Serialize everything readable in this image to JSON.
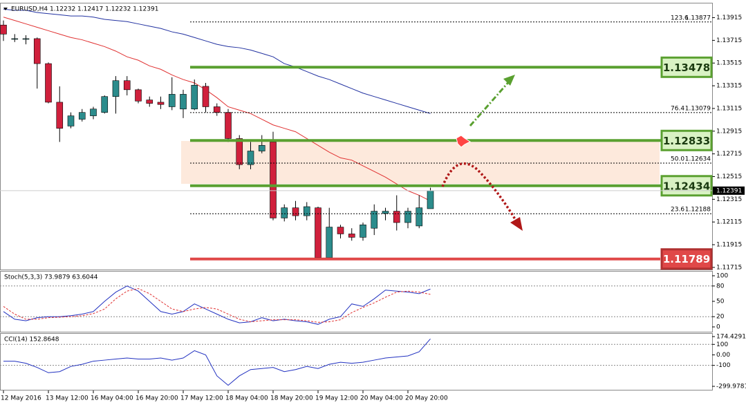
{
  "chart_data": [
    {
      "type": "candlestick",
      "title": "EURUSD,H4  1.12232 1.12417 1.12232 1.12391",
      "last_price": 1.12391,
      "categories": [
        "12 May 2016",
        null,
        null,
        null,
        "13 May 12:00",
        null,
        null,
        null,
        "16 May 04:00",
        null,
        null,
        null,
        "16 May 20:00",
        null,
        null,
        null,
        "17 May 12:00",
        null,
        null,
        null,
        "18 May 04:00",
        null,
        null,
        null,
        "18 May 20:00",
        null,
        null,
        null,
        "19 May 12:00",
        null,
        null,
        null,
        "20 May 04:00",
        null,
        null,
        null,
        "20 May 20:00",
        null,
        null
      ],
      "open": [
        1.1385,
        1.1373,
        1.1373,
        1.1373,
        1.1351,
        1.1317,
        1.1296,
        1.1302,
        1.1305,
        1.1308,
        1.1322,
        1.1336,
        1.1328,
        1.1319,
        1.1317,
        1.1313,
        1.1311,
        1.1311,
        1.1331,
        1.1313,
        1.1308,
        1.1285,
        1.1262,
        1.1274,
        1.1282,
        1.1215,
        1.1224,
        1.1217,
        1.1224,
        1.118,
        1.1207,
        1.1201,
        1.1198,
        1.1206,
        1.1219,
        1.1221,
        1.1211,
        1.1208,
        1.12232
      ],
      "high": [
        1.1389,
        1.1377,
        1.1376,
        1.1374,
        1.1352,
        1.1331,
        1.1308,
        1.1311,
        1.1313,
        1.1323,
        1.134,
        1.134,
        1.1329,
        1.1322,
        1.1322,
        1.1339,
        1.1328,
        1.1337,
        1.1334,
        1.1316,
        1.1311,
        1.1288,
        1.1282,
        1.1288,
        1.1291,
        1.1227,
        1.123,
        1.1229,
        1.1225,
        1.1224,
        1.1209,
        1.1206,
        1.1211,
        1.1227,
        1.1224,
        1.1235,
        1.1224,
        1.1235,
        1.12417
      ],
      "low": [
        1.1371,
        1.137,
        1.1368,
        1.1329,
        1.1316,
        1.1282,
        1.1294,
        1.13,
        1.1302,
        1.1307,
        1.1307,
        1.1323,
        1.1316,
        1.1313,
        1.1311,
        1.131,
        1.1303,
        1.131,
        1.1308,
        1.1305,
        1.1282,
        1.1258,
        1.1258,
        1.1272,
        1.1213,
        1.1212,
        1.1213,
        1.1213,
        1.1179,
        1.1179,
        1.1197,
        1.1195,
        1.1195,
        1.12,
        1.1213,
        1.1204,
        1.1206,
        1.1206,
        1.12232
      ],
      "close": [
        1.1377,
        1.1373,
        1.1373,
        1.1351,
        1.1317,
        1.1294,
        1.1305,
        1.1308,
        1.1311,
        1.1322,
        1.1336,
        1.1328,
        1.1318,
        1.1316,
        1.1315,
        1.1324,
        1.1324,
        1.1332,
        1.1313,
        1.1308,
        1.1285,
        1.1262,
        1.1274,
        1.1279,
        1.1215,
        1.1224,
        1.1217,
        1.1225,
        1.118,
        1.1207,
        1.1201,
        1.1198,
        1.1209,
        1.1221,
        1.1221,
        1.1211,
        1.1221,
        1.1224,
        1.12391
      ],
      "up_color": "#2c8c8c",
      "down_color": "#d0203c",
      "series": [
        {
          "color": "#e03030",
          "values": [
            1.1392,
            1.1389,
            1.1386,
            1.1383,
            1.138,
            1.1377,
            1.1374,
            1.1372,
            1.1369,
            1.1366,
            1.1362,
            1.1357,
            1.1354,
            1.1349,
            1.1346,
            1.1341,
            1.1337,
            1.1334,
            1.1328,
            1.1321,
            1.1313,
            1.131,
            1.1307,
            1.1302,
            1.1297,
            1.1294,
            1.1291,
            1.1285,
            1.1279,
            1.1273,
            1.1268,
            1.1266,
            1.1261,
            1.1256,
            1.1251,
            1.1245,
            1.1239,
            1.1235,
            1.123
          ]
        },
        {
          "color": "#2030a0",
          "values": [
            1.1399,
            1.1398,
            1.1398,
            1.1396,
            1.1395,
            1.1394,
            1.1393,
            1.1393,
            1.1392,
            1.139,
            1.1389,
            1.1388,
            1.1386,
            1.1384,
            1.1382,
            1.1379,
            1.1377,
            1.1374,
            1.1371,
            1.1368,
            1.1366,
            1.1365,
            1.1363,
            1.136,
            1.1357,
            1.1351,
            1.1348,
            1.1344,
            1.134,
            1.1337,
            1.1333,
            1.1329,
            1.1325,
            1.1322,
            1.1319,
            1.1316,
            1.1313,
            1.131,
            1.1307
          ]
        }
      ],
      "levels": [
        {
          "price": 1.13478,
          "color": "#5aa030"
        },
        {
          "price": 1.12833,
          "color": "#5aa030"
        },
        {
          "price": 1.12434,
          "color": "#5aa030"
        },
        {
          "price": 1.11789,
          "color": "#e04848"
        }
      ],
      "fib": [
        {
          "level": "123.6",
          "price": 1.13877
        },
        {
          "level": "76.4",
          "price": 1.13079
        },
        {
          "level": "50.0",
          "price": 1.12634
        },
        {
          "level": "23.6",
          "price": 1.12188
        }
      ],
      "ylim": [
        1.1169,
        1.1404
      ],
      "yticks": [
        1.13915,
        1.13715,
        1.13515,
        1.13315,
        1.13115,
        1.12915,
        1.12715,
        1.12515,
        1.12315,
        1.12115,
        1.11915,
        1.11715
      ]
    },
    {
      "type": "line",
      "title": "Stoch(5,3,3) 73.9879 63.6044",
      "ylim": [
        0,
        100
      ],
      "yticks": [
        100,
        80,
        50,
        20,
        0
      ],
      "levels": [
        80,
        20
      ],
      "series": [
        {
          "color": "#2030c0",
          "values": [
            30,
            15,
            12,
            18,
            20,
            20,
            22,
            25,
            30,
            50,
            68,
            80,
            70,
            50,
            30,
            25,
            30,
            45,
            35,
            25,
            15,
            8,
            10,
            18,
            12,
            15,
            12,
            10,
            5,
            15,
            20,
            45,
            40,
            55,
            72,
            70,
            68,
            65,
            73.9879
          ]
        },
        {
          "color": "#e03030",
          "dash": true,
          "values": [
            40,
            25,
            15,
            15,
            18,
            19,
            20,
            22,
            26,
            35,
            55,
            70,
            75,
            65,
            50,
            35,
            30,
            35,
            38,
            35,
            25,
            15,
            10,
            12,
            14,
            14,
            14,
            12,
            9,
            10,
            14,
            28,
            38,
            47,
            58,
            68,
            70,
            68,
            63.6044
          ]
        }
      ]
    },
    {
      "type": "line",
      "title": "CCI(14) 152.8648",
      "ylim": [
        -299.9781,
        174.4291
      ],
      "yticks": [
        174.4291,
        100,
        {
          "value": 0,
          "label": "0.00"
        },
        -100,
        -299.9781
      ],
      "levels": [
        100,
        -100
      ],
      "series": [
        {
          "color": "#2030c0",
          "values": [
            -60,
            -60,
            -80,
            -120,
            -170,
            -160,
            -110,
            -90,
            -60,
            -50,
            -40,
            -30,
            -40,
            -40,
            -30,
            -50,
            -30,
            40,
            0,
            -200,
            -290,
            -200,
            -140,
            -130,
            -120,
            -160,
            -140,
            -110,
            -130,
            -90,
            -70,
            -80,
            -70,
            -50,
            -30,
            -20,
            -10,
            30,
            152.8648
          ]
        }
      ]
    }
  ]
}
